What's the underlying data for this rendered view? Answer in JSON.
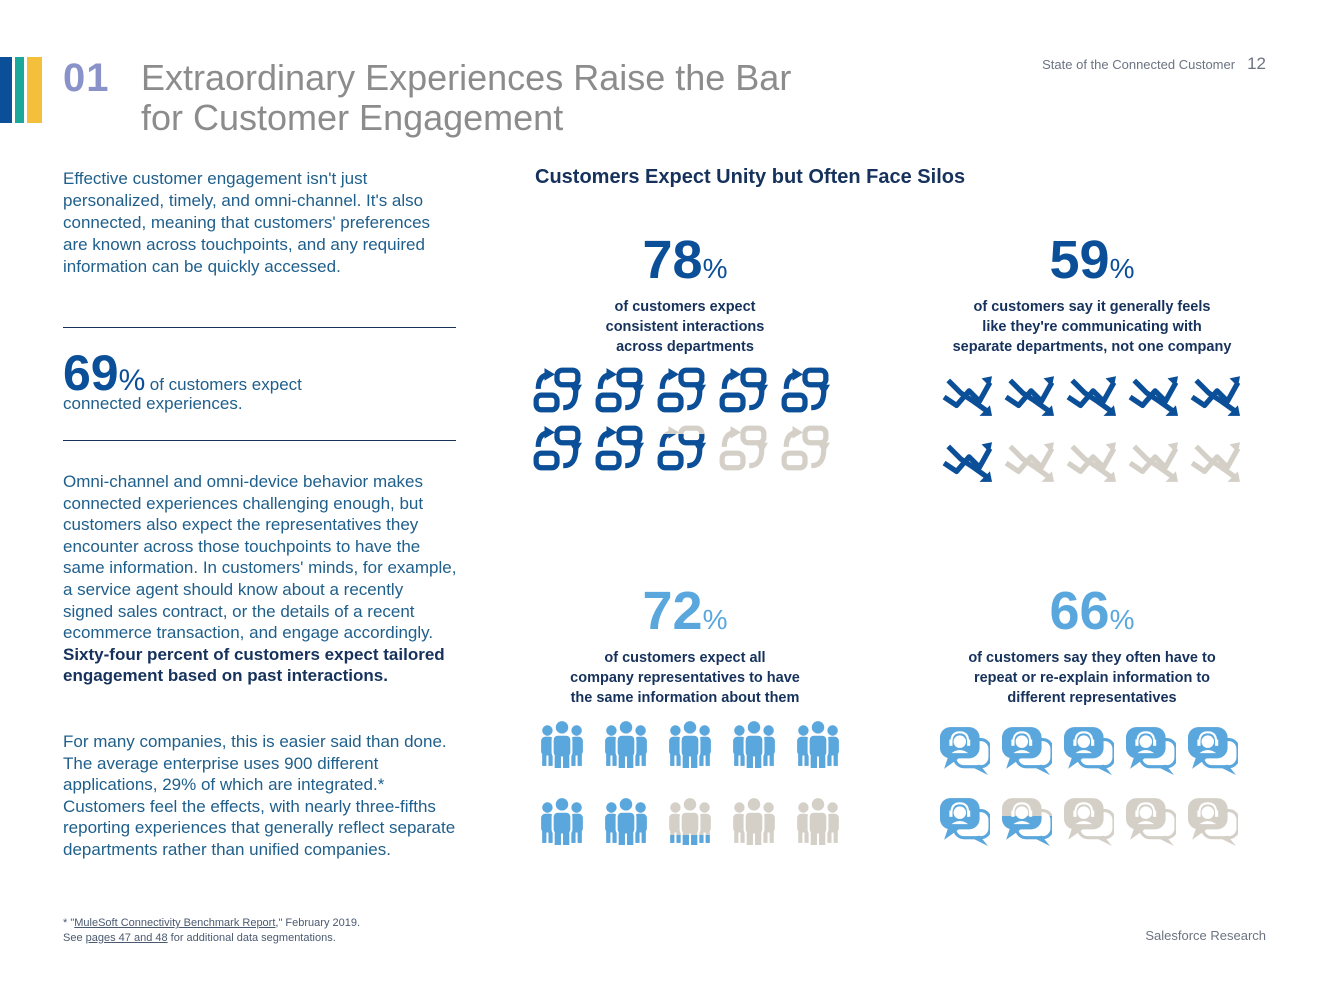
{
  "colors": {
    "accent_blue": "#0b4f99",
    "accent_light_blue": "#5aa7de",
    "accent_teal": "#1aa89b",
    "accent_yellow": "#f4bf3b",
    "inactive_gray": "#d4d0c8",
    "section_number": "#8a93c9",
    "title_gray": "#8c8c8c"
  },
  "header": {
    "section_number": "01",
    "title_line1": "Extraordinary Experiences Raise the Bar",
    "title_line2": "for Customer Engagement",
    "doc_name": "State of the Connected Customer",
    "page_number": "12"
  },
  "left": {
    "intro": "Effective customer engagement isn't just personalized, timely, and omni-channel. It's also connected, meaning that customers' preferences are known across touchpoints, and any required information can be quickly accessed.",
    "stat_number": "69",
    "stat_pct": "%",
    "stat_text_a": "of customers expect",
    "stat_text_b": "connected experiences",
    "stat_text_c": ".",
    "body2_plain": "Omni-channel and omni-device behavior makes connected experiences challenging enough, but customers also expect the representatives they encounter across those touchpoints to have the same information. In customers' minds, for example, a service agent should know about a recently signed sales contract, or the details of a recent ecommerce transaction, and engage accordingly. ",
    "body2_bold": "Sixty-four percent of customers expect tailored engagement based on past interactions.",
    "body3": "For many companies, this is easier said than done. The average enterprise uses 900 different applications, 29% of which are integrated.* Customers feel the effects, with nearly three-fifths reporting experiences that generally reflect separate departments rather than unified companies."
  },
  "footnote": {
    "marker": "* \"",
    "link1": "MuleSoft Connectivity Benchmark Report",
    "after1": ",\" February 2019.",
    "see": "See ",
    "link2": "pages 47 and 48",
    "after2": " for additional data segmentations."
  },
  "footer": {
    "brand": "Salesforce Research"
  },
  "chart_data": {
    "type": "pictograph",
    "title": "Customers Expect Unity but Often Face Silos",
    "icons_per_chart": 10,
    "stats": [
      {
        "value": 78,
        "unit": "%",
        "caption": "of customers expect consistent interactions across departments",
        "cap1": "of customers expect",
        "cap2": "consistent interactions",
        "cap3": "across departments",
        "icon": "sync-arrows-icon",
        "filled_icons": 7.8,
        "color": "#0b4f99"
      },
      {
        "value": 59,
        "unit": "%",
        "caption": "of customers say it generally feels like they're communicating with separate departments, not one company",
        "cap1": "of customers say it generally feels",
        "cap2": "like they're communicating with",
        "cap3": "separate departments, not one company",
        "icon": "crossed-arrows-icon",
        "filled_icons": 5.9,
        "color": "#0b4f99"
      },
      {
        "value": 72,
        "unit": "%",
        "caption": "of customers expect all company representatives to have the same information about them",
        "cap1": "of customers expect all",
        "cap2": "company representatives to have",
        "cap3": "the same information about them",
        "icon": "people-group-icon",
        "filled_icons": 7.2,
        "color": "#5aa7de"
      },
      {
        "value": 66,
        "unit": "%",
        "caption": "of customers say they often have to repeat or re-explain information to different representatives",
        "cap1": "of customers say they often have to",
        "cap2": "repeat or re-explain information to",
        "cap3": "different representatives",
        "icon": "agent-chat-icon",
        "filled_icons": 6.6,
        "color": "#5aa7de"
      }
    ]
  }
}
